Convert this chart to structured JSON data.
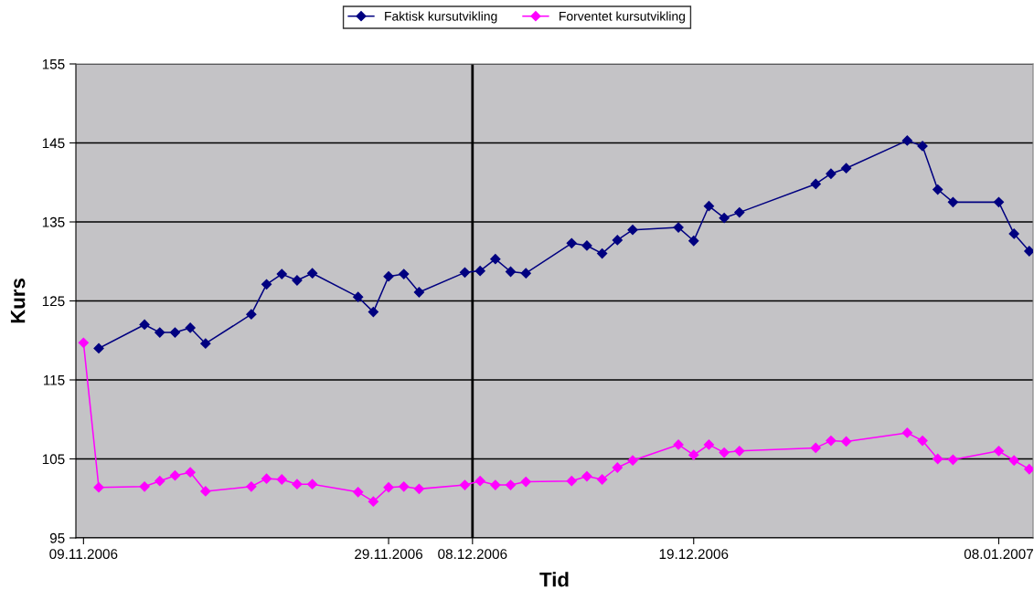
{
  "chart_data": {
    "type": "line",
    "xlabel": "Tid",
    "ylabel": "Kurs",
    "x": [
      "2006-11-09",
      "2006-11-10",
      "2006-11-13",
      "2006-11-14",
      "2006-11-15",
      "2006-11-16",
      "2006-11-17",
      "2006-11-20",
      "2006-11-21",
      "2006-11-22",
      "2006-11-23",
      "2006-11-24",
      "2006-11-27",
      "2006-11-28",
      "2006-11-29",
      "2006-11-30",
      "2006-12-01",
      "2006-12-04",
      "2006-12-05",
      "2006-12-06",
      "2006-12-07",
      "2006-12-08",
      "2006-12-11",
      "2006-12-12",
      "2006-12-13",
      "2006-12-14",
      "2006-12-15",
      "2006-12-18",
      "2006-12-19",
      "2006-12-20",
      "2006-12-21",
      "2006-12-22",
      "2006-12-27",
      "2006-12-28",
      "2006-12-29",
      "2007-01-02",
      "2007-01-03",
      "2007-01-04",
      "2007-01-05",
      "2007-01-08",
      "2007-01-09",
      "2007-01-10"
    ],
    "series": [
      {
        "name": "Faktisk kursutvikling",
        "color": "#000080",
        "values": [
          null,
          119.0,
          122.0,
          121.0,
          121.0,
          121.6,
          119.6,
          123.3,
          127.1,
          128.4,
          127.6,
          128.5,
          125.5,
          123.6,
          128.1,
          128.4,
          126.1,
          128.6,
          128.8,
          130.3,
          128.7,
          128.5,
          132.3,
          132.0,
          131.0,
          132.7,
          134.0,
          134.3,
          132.6,
          137.0,
          135.5,
          136.2,
          139.8,
          141.1,
          141.8,
          145.3,
          144.6,
          139.1,
          137.5,
          137.5,
          133.5,
          131.3
        ]
      },
      {
        "name": "Forventet kursutvikling",
        "color": "#ff00ff",
        "values": [
          119.7,
          101.4,
          101.5,
          102.2,
          102.9,
          103.3,
          100.9,
          101.5,
          102.5,
          102.4,
          101.8,
          101.8,
          100.8,
          99.6,
          101.4,
          101.5,
          101.2,
          101.7,
          102.2,
          101.7,
          101.7,
          102.1,
          102.2,
          102.8,
          102.4,
          103.9,
          104.8,
          106.8,
          105.5,
          106.8,
          105.8,
          106.0,
          106.4,
          107.3,
          107.2,
          108.3,
          107.3,
          105.0,
          104.9,
          106.0,
          104.8,
          103.7
        ]
      }
    ],
    "xlim": [
      "2006-11-08T12:00",
      "2007-01-10T06:00"
    ],
    "xticks": [
      {
        "value": "2006-11-09",
        "label": "09.11.2006"
      },
      {
        "value": "2006-11-29",
        "label": "29.11.2006"
      },
      {
        "value": "2006-12-04T12:00",
        "label": "08.12.2006"
      },
      {
        "value": "2006-12-19",
        "label": "19.12.2006"
      },
      {
        "value": "2007-01-08",
        "label": "08.01.2007"
      }
    ],
    "ylim": [
      95,
      155
    ],
    "yticks": [
      95,
      105,
      115,
      125,
      135,
      145,
      155
    ],
    "ref_lines": [
      {
        "axis": "x",
        "value": "2006-12-04T12:00",
        "color": "#000000"
      }
    ],
    "grid": "y",
    "legend": "top",
    "marker": "diamond",
    "line_style": "solid"
  }
}
